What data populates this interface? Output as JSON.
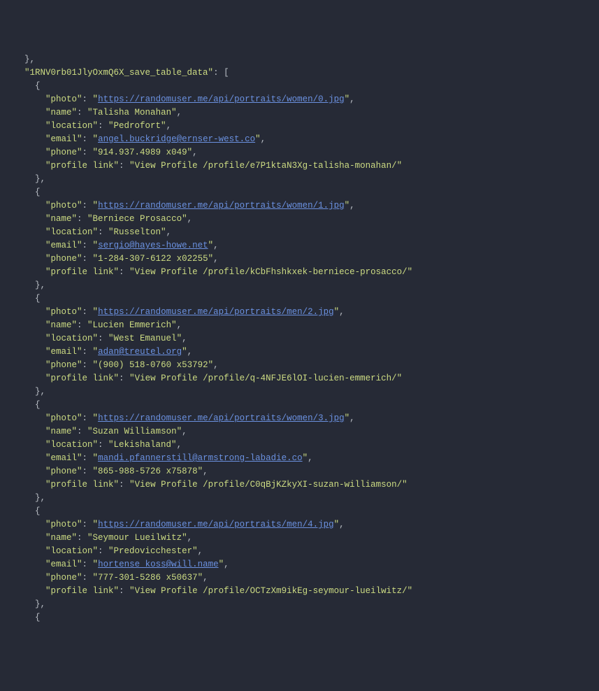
{
  "colors": {
    "background": "#262a36",
    "text": "#e6e1dc",
    "key": "#cddc83",
    "string": "#cddc83",
    "punctuation": "#b8bdc4",
    "link": "#6b91e0"
  },
  "typography": {
    "fontFamily": "Menlo, Monaco, Consolas, monospace",
    "fontSize": 12.5,
    "lineHeight": 1.52
  },
  "opening_brace_close": "},",
  "array_key": "\"1RNV0rb01JlyOxmQ6X_save_table_data\": [",
  "records": [
    {
      "photo": "https://randomuser.me/api/portraits/women/0.jpg",
      "name": "Talisha Monahan",
      "location": "Pedrofort",
      "email": "angel.buckridge@ernser-west.co",
      "phone": "914.937.4989 x049",
      "profile_link": "View Profile /profile/e7P1ktaN3Xg-talisha-monahan/"
    },
    {
      "photo": "https://randomuser.me/api/portraits/women/1.jpg",
      "name": "Berniece Prosacco",
      "location": "Russelton",
      "email": "sergio@hayes-howe.net",
      "phone": "1-284-307-6122 x02255",
      "profile_link": "View Profile /profile/kCbFhshkxek-berniece-prosacco/"
    },
    {
      "photo": "https://randomuser.me/api/portraits/men/2.jpg",
      "name": "Lucien Emmerich",
      "location": "West Emanuel",
      "email": "adan@treutel.org",
      "phone": "(900) 518-0760 x53792",
      "profile_link": "View Profile /profile/q-4NFJE6lOI-lucien-emmerich/"
    },
    {
      "photo": "https://randomuser.me/api/portraits/women/3.jpg",
      "name": "Suzan Williamson",
      "location": "Lekishaland",
      "email": "mandi.pfannerstill@armstrong-labadie.co",
      "phone": "865-988-5726 x75878",
      "profile_link": "View Profile /profile/C0qBjKZkyXI-suzan-williamson/"
    },
    {
      "photo": "https://randomuser.me/api/portraits/men/4.jpg",
      "name": "Seymour Lueilwitz",
      "location": "Predovicchester",
      "email": "hortense_koss@will.name",
      "phone": "777-301-5286 x50637",
      "profile_link": "View Profile /profile/OCTzXm9ikEg-seymour-lueilwitz/"
    }
  ],
  "trailing_open_brace": "{"
}
